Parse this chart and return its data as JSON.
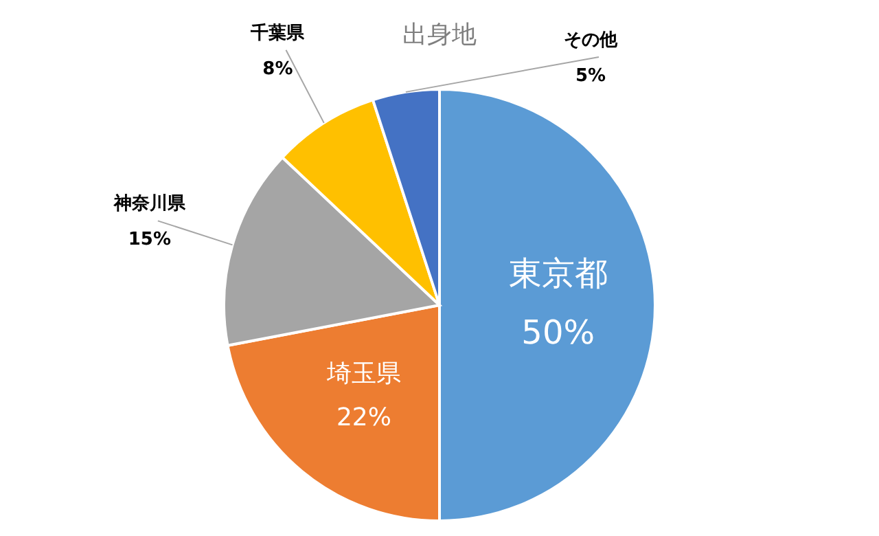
{
  "chart_data": {
    "type": "pie",
    "title": "出身地",
    "categories": [
      "東京都",
      "埼玉県",
      "神奈川県",
      "千葉県",
      "その他"
    ],
    "values": [
      50,
      22,
      15,
      8,
      5
    ],
    "colors": [
      "#5b9bd5",
      "#ed7d31",
      "#a5a5a5",
      "#ffc000",
      "#4472c4"
    ],
    "value_labels": [
      "50%",
      "22%",
      "15%",
      "8%",
      "5%"
    ]
  }
}
